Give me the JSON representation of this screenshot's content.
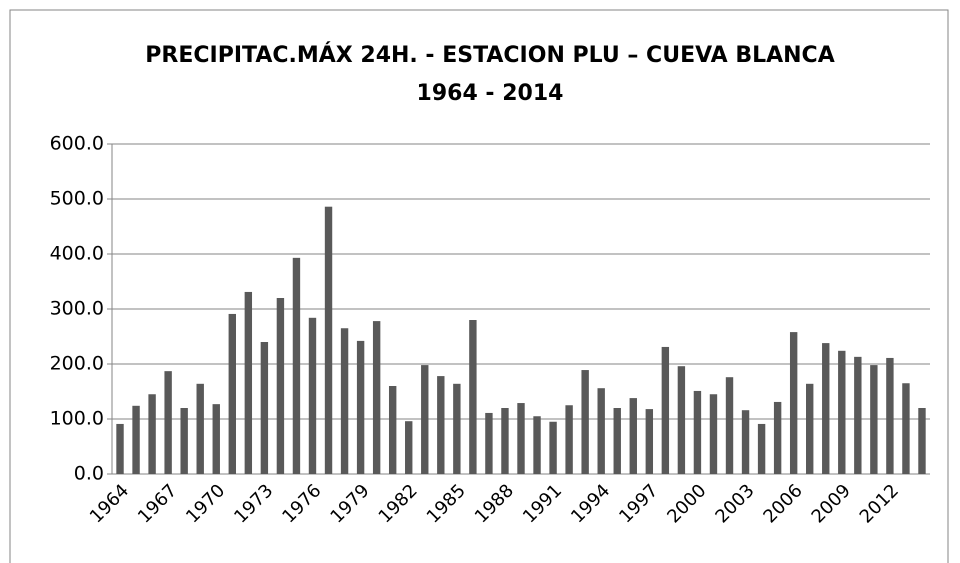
{
  "chart_data": {
    "type": "bar",
    "title": "PRECIPITAC.MÁX 24H. - ESTACION PLU – CUEVA BLANCA",
    "subtitle": "1964 - 2014",
    "categories": [
      "1964",
      null,
      null,
      "1967",
      null,
      null,
      "1970",
      null,
      null,
      "1973",
      null,
      null,
      "1976",
      null,
      null,
      "1979",
      null,
      null,
      "1982",
      null,
      null,
      "1985",
      null,
      null,
      "1988",
      null,
      null,
      "1991",
      null,
      null,
      "1994",
      null,
      null,
      "1997",
      null,
      null,
      "2000",
      null,
      null,
      "2003",
      null,
      null,
      "2006",
      null,
      null,
      "2009",
      null,
      null,
      "2012",
      null,
      null
    ],
    "values": [
      91,
      124,
      145,
      187,
      120,
      164,
      127,
      291,
      331,
      240,
      320,
      393,
      284,
      486,
      265,
      242,
      278,
      160,
      96,
      198,
      178,
      164,
      280,
      111,
      120,
      129,
      105,
      95,
      125,
      189,
      156,
      120,
      138,
      118,
      231,
      196,
      151,
      145,
      176,
      116,
      91,
      131,
      258,
      164,
      238,
      224,
      213,
      198,
      211,
      165,
      120
    ],
    "color": "#595959",
    "ylim": [
      0,
      600
    ],
    "yticks": [
      {
        "value": 0,
        "label": "0.0"
      },
      {
        "value": 100,
        "label": "100.0"
      },
      {
        "value": 200,
        "label": "200.0"
      },
      {
        "value": 300,
        "label": "300.0"
      },
      {
        "value": 400,
        "label": "400.0"
      },
      {
        "value": 500,
        "label": "500.0"
      },
      {
        "value": 600,
        "label": "600.0"
      }
    ],
    "grid": true
  }
}
